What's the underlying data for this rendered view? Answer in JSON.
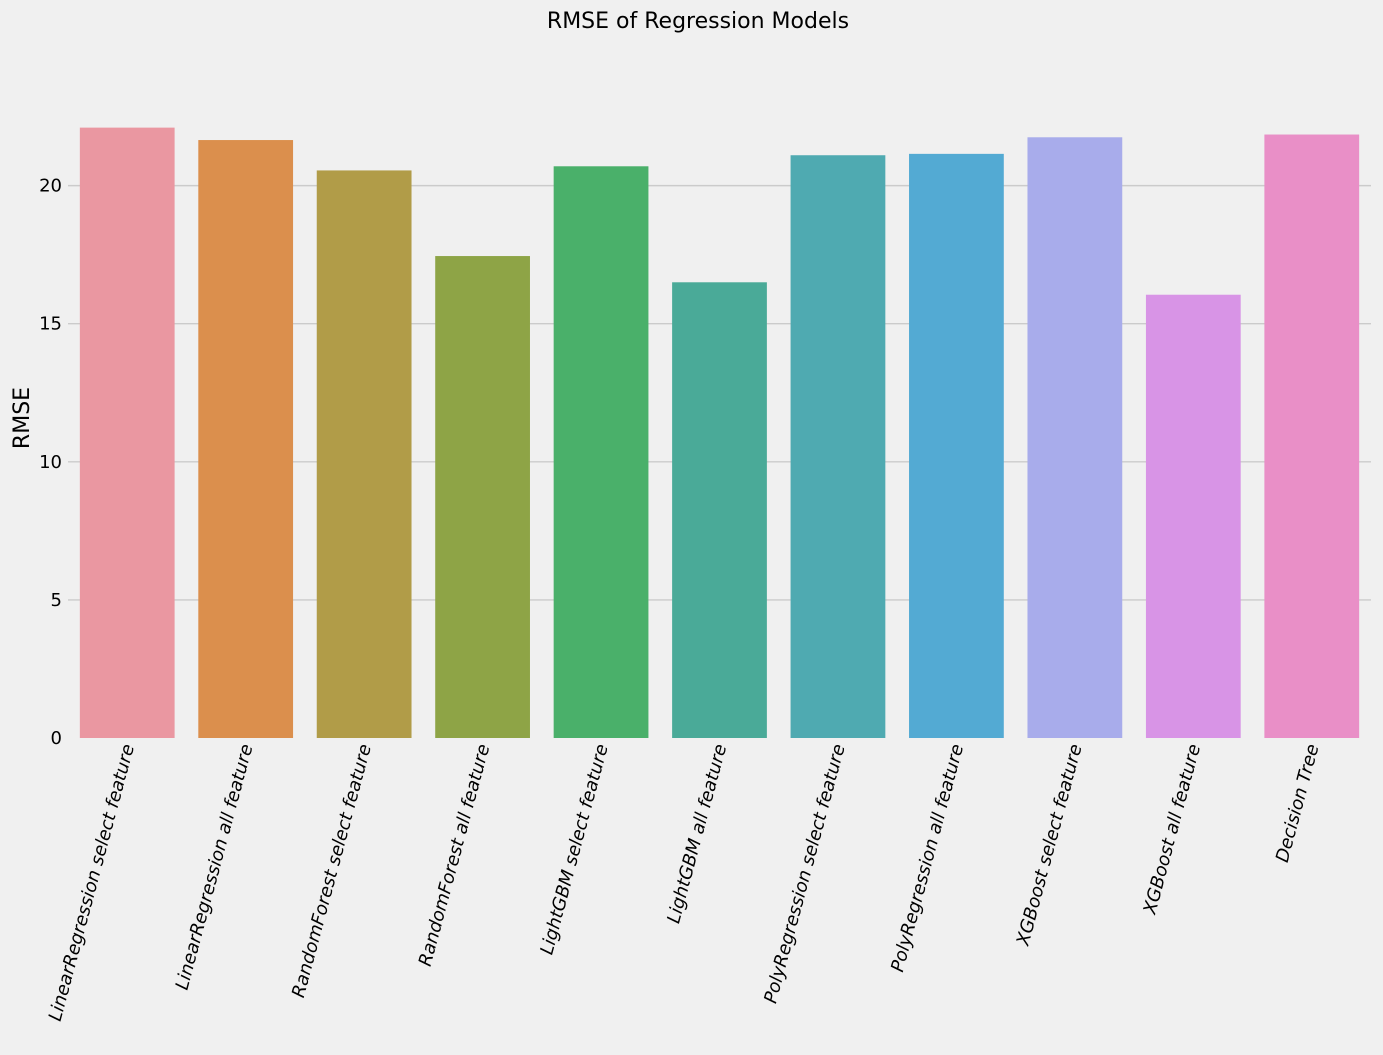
{
  "chart_data": {
    "type": "bar",
    "title": "RMSE of Regression Models",
    "xlabel": "",
    "ylabel": "RMSE",
    "ylim": [
      0,
      23.1
    ],
    "yticks": [
      0,
      5,
      10,
      15,
      20
    ],
    "grid": "horizontal",
    "categories": [
      "LinearRegression select feature",
      "LinearRegression all feature",
      "RandomForest select feature",
      "RandomForest all feature",
      "LightGBM select feature",
      "LightGBM all feature",
      "PolyRegression select feature",
      "PolyRegression all feature",
      "XGBoost select feature",
      "XGBoost all feature",
      "Decision Tree"
    ],
    "values": [
      22.1,
      21.65,
      20.55,
      17.45,
      20.7,
      16.5,
      21.1,
      21.15,
      21.75,
      16.05,
      21.85
    ],
    "colors": [
      "#ea97a1",
      "#db8f4d",
      "#b19c48",
      "#8ea446",
      "#4ab06a",
      "#4aaa98",
      "#4faab1",
      "#53aad3",
      "#a8aceb",
      "#d894e6",
      "#e98fc7"
    ]
  }
}
